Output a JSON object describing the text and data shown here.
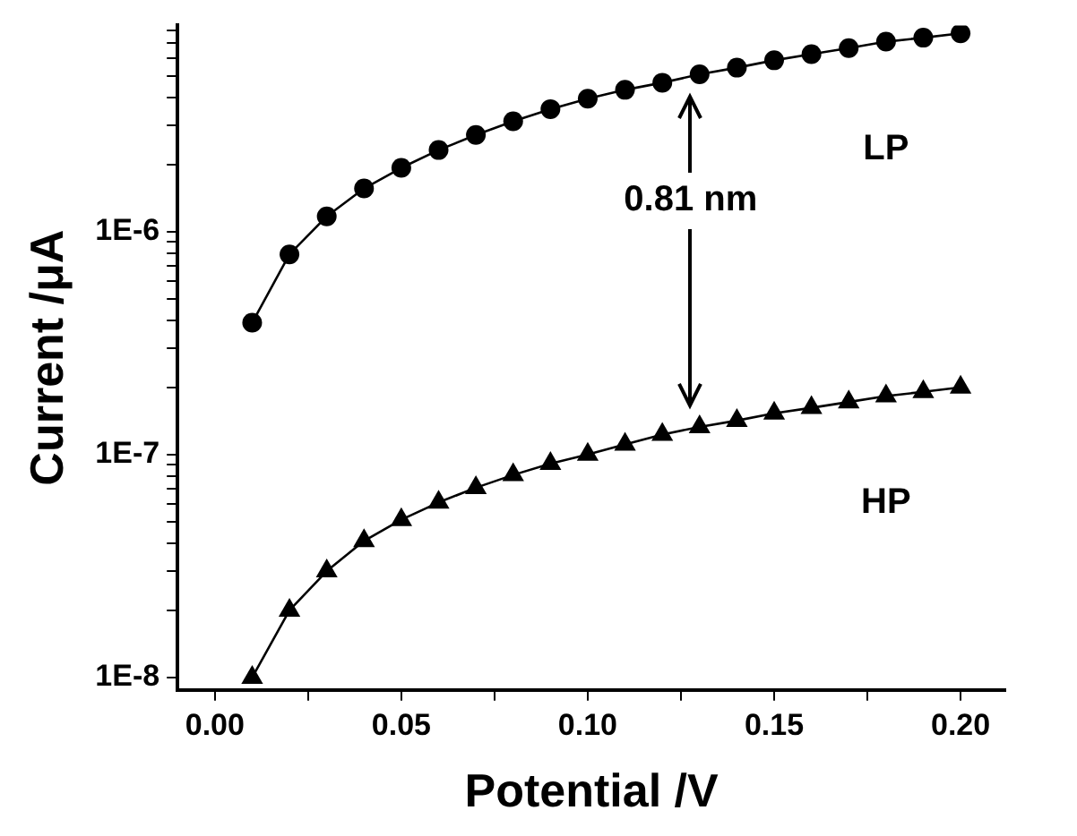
{
  "chart_data": {
    "type": "line",
    "xlabel": "Potential /V",
    "ylabel": "Current /μA",
    "log": "y",
    "grid": false,
    "legend": false,
    "line_style": "solid",
    "x": [
      0.01,
      0.02,
      0.03,
      0.04,
      0.05,
      0.06,
      0.07,
      0.08,
      0.09,
      0.1,
      0.11,
      0.12,
      0.13,
      0.14,
      0.15,
      0.16,
      0.17,
      0.18,
      0.19,
      0.2
    ],
    "series": [
      {
        "name": "LP",
        "color": "#000000",
        "marker": "circle",
        "values": [
          3.9e-07,
          7.9e-07,
          1.17e-06,
          1.56e-06,
          1.93e-06,
          2.32e-06,
          2.71e-06,
          3.12e-06,
          3.54e-06,
          3.94e-06,
          4.32e-06,
          4.65e-06,
          5.07e-06,
          5.43e-06,
          5.86e-06,
          6.24e-06,
          6.64e-06,
          7.1e-06,
          7.4e-06,
          7.74e-06
        ]
      },
      {
        "name": "HP",
        "color": "#000000",
        "marker": "triangle",
        "values": [
          1e-08,
          2e-08,
          3e-08,
          4.1e-08,
          5.1e-08,
          6.1e-08,
          7.1e-08,
          8.1e-08,
          9.1e-08,
          1e-07,
          1.11e-07,
          1.23e-07,
          1.33e-07,
          1.42e-07,
          1.53e-07,
          1.62e-07,
          1.72e-07,
          1.83e-07,
          1.91e-07,
          2e-07
        ]
      }
    ],
    "xlim": [
      -0.01,
      0.212
    ],
    "xticks": [
      {
        "value": 0,
        "label": "0.00"
      },
      {
        "value": 0.025,
        "label": null
      },
      {
        "value": 0.05,
        "label": "0.05"
      },
      {
        "value": 0.075,
        "label": null
      },
      {
        "value": 0.1,
        "label": "0.10"
      },
      {
        "value": 0.125,
        "label": null
      },
      {
        "value": 0.15,
        "label": "0.15"
      },
      {
        "value": 0.175,
        "label": null
      },
      {
        "value": 0.2,
        "label": "0.20"
      }
    ],
    "ylim": [
      8.8e-09,
      8.4e-06
    ],
    "yticks": [
      {
        "value": 1e-08,
        "label": "1E-8"
      },
      {
        "value": 2e-08,
        "label": null
      },
      {
        "value": 3e-08,
        "label": null
      },
      {
        "value": 4e-08,
        "label": null
      },
      {
        "value": 5e-08,
        "label": null
      },
      {
        "value": 6e-08,
        "label": null
      },
      {
        "value": 7e-08,
        "label": null
      },
      {
        "value": 8e-08,
        "label": null
      },
      {
        "value": 9e-08,
        "label": null
      },
      {
        "value": 1e-07,
        "label": "1E-7"
      },
      {
        "value": 2e-07,
        "label": null
      },
      {
        "value": 3e-07,
        "label": null
      },
      {
        "value": 4e-07,
        "label": null
      },
      {
        "value": 5e-07,
        "label": null
      },
      {
        "value": 6e-07,
        "label": null
      },
      {
        "value": 7e-07,
        "label": null
      },
      {
        "value": 8e-07,
        "label": null
      },
      {
        "value": 9e-07,
        "label": null
      },
      {
        "value": 1e-06,
        "label": "1E-6"
      },
      {
        "value": 2e-06,
        "label": null
      },
      {
        "value": 3e-06,
        "label": null
      },
      {
        "value": 4e-06,
        "label": null
      },
      {
        "value": 5e-06,
        "label": null
      },
      {
        "value": 6e-06,
        "label": null
      },
      {
        "value": 7e-06,
        "label": null
      },
      {
        "value": 8e-06,
        "label": null
      }
    ],
    "annotations": [
      "0.81 nm"
    ]
  }
}
